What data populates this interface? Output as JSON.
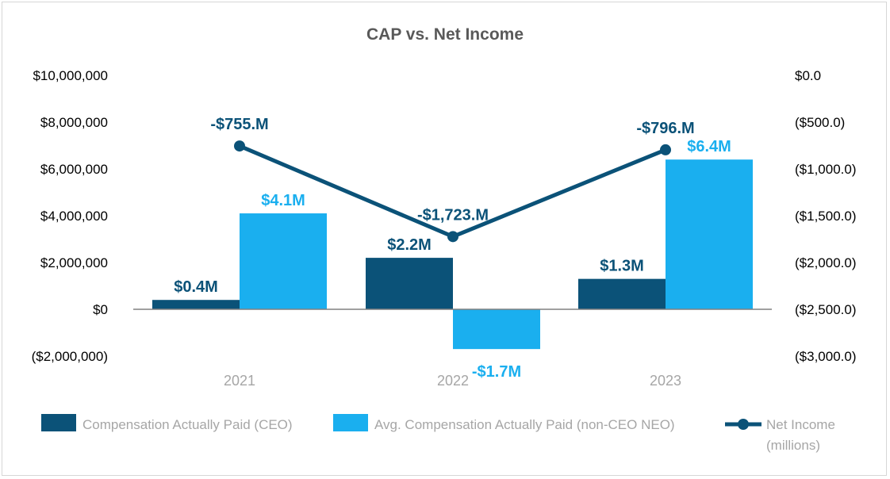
{
  "chart_data": {
    "type": "bar",
    "title": "CAP vs. Net Income",
    "categories": [
      "2021",
      "2022",
      "2023"
    ],
    "y_left": {
      "range": [
        -2000000,
        10000000
      ],
      "ticks": [
        10000000,
        8000000,
        6000000,
        4000000,
        2000000,
        0,
        -2000000
      ],
      "tick_labels": [
        "$10,000,000",
        "$8,000,000",
        "$6,000,000",
        "$4,000,000",
        "$2,000,000",
        "$0",
        "($2,000,000)"
      ]
    },
    "y_right": {
      "range": [
        -3000,
        0
      ],
      "ticks": [
        0,
        -500,
        -1000,
        -1500,
        -2000,
        -2500,
        -3000
      ],
      "tick_labels": [
        "$0.0",
        "($500.0)",
        "($1,000.0)",
        "($1,500.0)",
        "($2,000.0)",
        "($2,500.0)",
        "($3,000.0)"
      ]
    },
    "series": [
      {
        "name": "Compensation Actually Paid (CEO)",
        "type": "bar",
        "axis": "left",
        "color": "#0b5278",
        "values": [
          400000,
          2200000,
          1300000
        ],
        "labels": [
          "$0.4M",
          "$2.2M",
          "$1.3M"
        ]
      },
      {
        "name": "Avg. Compensation Actually Paid (non-CEO NEO)",
        "type": "bar",
        "axis": "left",
        "color": "#1aafef",
        "values": [
          4100000,
          -1700000,
          6400000
        ],
        "labels": [
          "$4.1M",
          "-$1.7M",
          "$6.4M"
        ]
      },
      {
        "name": "Net Income (millions)",
        "name_lines": [
          "Net Income",
          "(millions)"
        ],
        "type": "line",
        "axis": "right",
        "color": "#0b5278",
        "values": [
          -755,
          -1723,
          -796
        ],
        "labels": [
          "-$755.M",
          "-$1,723.M",
          "-$796.M"
        ]
      }
    ],
    "legend": "bottom",
    "grid": false
  }
}
